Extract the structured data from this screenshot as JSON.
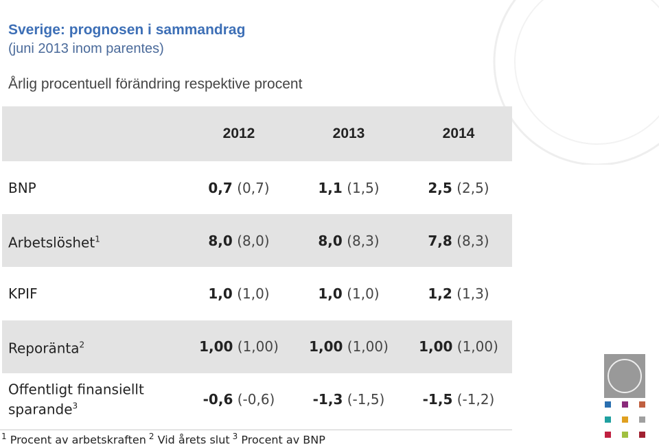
{
  "header": {
    "title": "Sverige: prognosen i sammandrag",
    "subtitle": "(juni 2013 inom parentes)",
    "description": "Årlig procentuell förändring respektive procent"
  },
  "table": {
    "columns": [
      "2012",
      "2013",
      "2014"
    ],
    "rows": [
      {
        "label": [
          "BNP"
        ],
        "note": null,
        "cells": [
          {
            "value": "0,7",
            "previous": "(0,7)"
          },
          {
            "value": "1,1",
            "previous": "(1,5)"
          },
          {
            "value": "2,5",
            "previous": "(2,5)"
          }
        ]
      },
      {
        "label": [
          "Arbetslöshet"
        ],
        "note": "1",
        "cells": [
          {
            "value": "8,0",
            "previous": "(8,0)"
          },
          {
            "value": "8,0",
            "previous": "(8,3)"
          },
          {
            "value": "7,8",
            "previous": "(8,3)"
          }
        ]
      },
      {
        "label": [
          "KPIF"
        ],
        "note": null,
        "cells": [
          {
            "value": "1,0",
            "previous": "(1,0)"
          },
          {
            "value": "1,0",
            "previous": "(1,0)"
          },
          {
            "value": "1,2",
            "previous": "(1,3)"
          }
        ]
      },
      {
        "label": [
          "Reporänta"
        ],
        "note": "2",
        "cells": [
          {
            "value": "1,00",
            "previous": "(1,00)"
          },
          {
            "value": "1,00",
            "previous": "(1,00)"
          },
          {
            "value": "1,00",
            "previous": "(1,00)"
          }
        ]
      },
      {
        "label": [
          "Offentligt finansiellt",
          "sparande"
        ],
        "note": "3",
        "cells": [
          {
            "value": "-0,6",
            "previous": "(-0,6)"
          },
          {
            "value": "-1,3",
            "previous": "(-1,5)"
          },
          {
            "value": "-1,5",
            "previous": "(-1,2)"
          }
        ]
      }
    ]
  },
  "footnotes": [
    {
      "marker": "1",
      "text": "Procent av arbetskraften"
    },
    {
      "marker": "2",
      "text": "Vid årets slut"
    },
    {
      "marker": "3",
      "text": "Procent av BNP"
    }
  ]
}
